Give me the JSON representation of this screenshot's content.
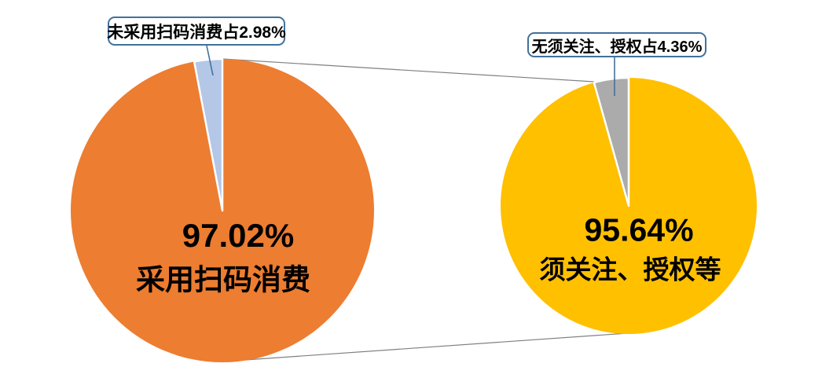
{
  "chart_data": [
    {
      "type": "pie",
      "title": "",
      "slices": [
        {
          "label": "采用扫码消费",
          "value": 97.02,
          "color": "#ED7D31"
        },
        {
          "label": "未采用扫码消费",
          "value": 2.98,
          "color": "#B4C7E7"
        }
      ],
      "center_label": {
        "percent": "97.02%",
        "caption": "采用扫码消费"
      },
      "callout_text": "未采用扫码消费占2.98%",
      "layout_hint": "small slice at top, right edge at 12 o'clock, callout box above-left"
    },
    {
      "type": "pie",
      "title": "",
      "slices": [
        {
          "label": "须关注、授权等",
          "value": 95.64,
          "color": "#FFC000"
        },
        {
          "label": "无须关注、授权",
          "value": 4.36,
          "color": "#ABABAB"
        }
      ],
      "center_label": {
        "percent": "95.64%",
        "caption": "须关注、授权等"
      },
      "callout_text": "无须关注、授权占4.36%",
      "layout_hint": "small slice at top, right edge at 12 o'clock, callout box above"
    }
  ],
  "colors": {
    "background": "#FFFFFF",
    "callout_border": "#41719C",
    "leader_line": "#41719C",
    "connector_line": "#808080",
    "label_text": "#000000",
    "slice_separator": "#FFFFFF"
  }
}
